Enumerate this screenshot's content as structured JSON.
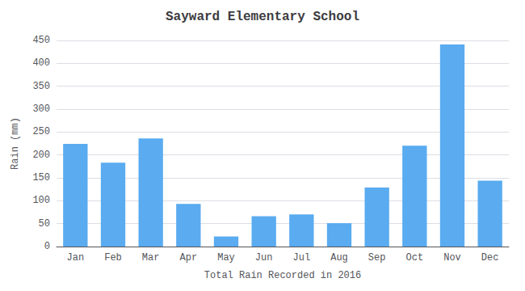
{
  "chart_data": {
    "type": "bar",
    "title": "Sayward Elementary School",
    "xlabel": "Total Rain Recorded in 2016",
    "ylabel": "Rain (mm)",
    "categories": [
      "Jan",
      "Feb",
      "Mar",
      "Apr",
      "May",
      "Jun",
      "Jul",
      "Aug",
      "Sep",
      "Oct",
      "Nov",
      "Dec"
    ],
    "values": [
      224,
      183,
      236,
      93,
      22,
      66,
      70,
      51,
      129,
      220,
      441,
      144
    ],
    "color": "#5aabf0",
    "ylim": [
      0,
      450
    ],
    "yticks": [
      0,
      50,
      100,
      150,
      200,
      250,
      300,
      350,
      400,
      450
    ],
    "grid": true
  }
}
